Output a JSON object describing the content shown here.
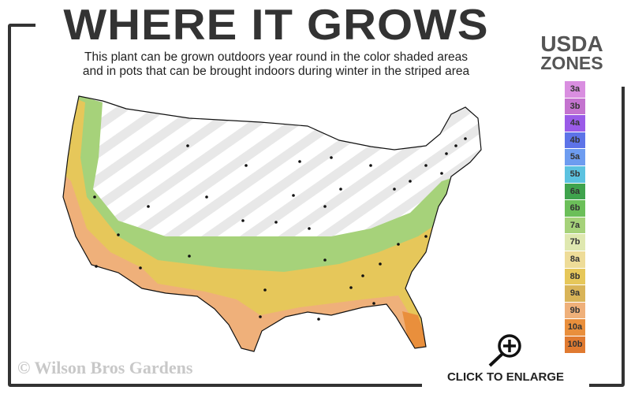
{
  "header": {
    "title": "WHERE IT GROWS",
    "subtitle_line1": "This plant can be grown outdoors year round in the color shaded areas",
    "subtitle_line2": "and in pots that can be brought indoors during winter in the striped area"
  },
  "legend": {
    "title_line1": "USDA",
    "title_line2": "ZONES",
    "zones": [
      {
        "label": "3a",
        "color": "#d98ee0"
      },
      {
        "label": "3b",
        "color": "#c473cf"
      },
      {
        "label": "4a",
        "color": "#9a5be8"
      },
      {
        "label": "4b",
        "color": "#5d73e8"
      },
      {
        "label": "5a",
        "color": "#6d9cf0"
      },
      {
        "label": "5b",
        "color": "#5cc2e0"
      },
      {
        "label": "6a",
        "color": "#3fa34d"
      },
      {
        "label": "6b",
        "color": "#6bbf59"
      },
      {
        "label": "7a",
        "color": "#a6d27a"
      },
      {
        "label": "7b",
        "color": "#dfe8b0"
      },
      {
        "label": "8a",
        "color": "#eedc98"
      },
      {
        "label": "8b",
        "color": "#e6c75a"
      },
      {
        "label": "9a",
        "color": "#d9b458"
      },
      {
        "label": "9b",
        "color": "#efb07a"
      },
      {
        "label": "10a",
        "color": "#e98f3c"
      },
      {
        "label": "10b",
        "color": "#e07a30"
      }
    ]
  },
  "footer": {
    "copyright": "© Wilson Bros Gardens",
    "enlarge_label": "CLICK TO ENLARGE"
  },
  "icons": {
    "enlarge": "magnifier-plus-icon"
  }
}
